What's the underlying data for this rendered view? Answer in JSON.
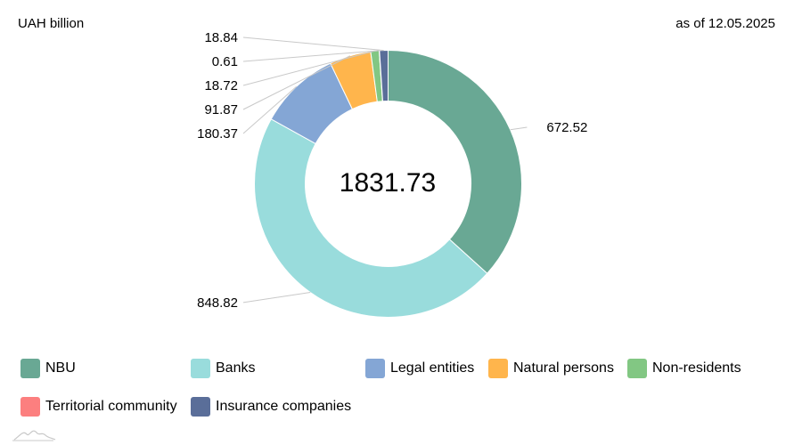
{
  "header": {
    "unit": "UAH billion",
    "date": "as of 12.05.2025"
  },
  "chart_data": {
    "type": "pie",
    "subtype": "donut",
    "total": "1831.73",
    "categories": [
      "NBU",
      "Banks",
      "Legal entities",
      "Natural persons",
      "Non-residents",
      "Territorial community",
      "Insurance companies"
    ],
    "values": [
      672.52,
      848.82,
      180.37,
      91.87,
      18.72,
      0.61,
      18.84
    ],
    "value_labels": [
      "672.52",
      "848.82",
      "180.37",
      "91.87",
      "18.72",
      "0.61",
      "18.84"
    ],
    "colors": [
      "#69a894",
      "#99dcdc",
      "#84a6d5",
      "#ffb54c",
      "#82c783",
      "#fc7f7f",
      "#5a6e99"
    ],
    "legend_position": "bottom"
  },
  "legend": {
    "items": [
      {
        "label": "NBU",
        "color": "#69a894"
      },
      {
        "label": "Banks",
        "color": "#99dcdc"
      },
      {
        "label": "Legal entities",
        "color": "#84a6d5"
      },
      {
        "label": "Natural persons",
        "color": "#ffb54c"
      },
      {
        "label": "Non-residents",
        "color": "#82c783"
      },
      {
        "label": "Territorial community",
        "color": "#fc7f7f"
      },
      {
        "label": "Insurance companies",
        "color": "#5a6e99"
      }
    ]
  }
}
